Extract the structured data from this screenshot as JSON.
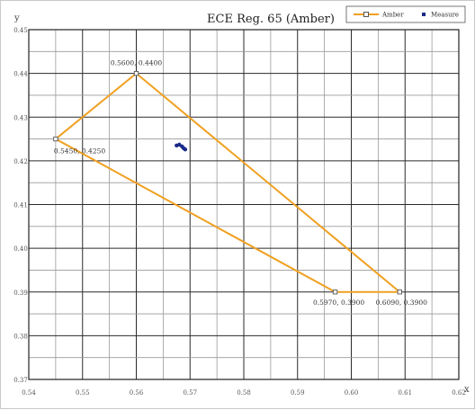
{
  "chart_data": {
    "type": "scatter",
    "title": "ECE Reg. 65 (Amber)",
    "xlabel": "x",
    "ylabel": "y",
    "xlim": [
      0.54,
      0.62
    ],
    "ylim": [
      0.37,
      0.45
    ],
    "x_ticks": [
      0.54,
      0.55,
      0.56,
      0.57,
      0.58,
      0.59,
      0.6,
      0.61,
      0.62
    ],
    "x_tick_labels": [
      "0.54",
      "0.55",
      "0.56",
      "0.57",
      "0.58",
      "0.59",
      "0.60",
      "0.61",
      "0.62"
    ],
    "y_ticks": [
      0.37,
      0.38,
      0.39,
      0.4,
      0.41,
      0.42,
      0.43,
      0.44,
      0.45
    ],
    "y_tick_labels": [
      "0.37",
      "0.38",
      "0.39",
      "0.40",
      "0.41",
      "0.42",
      "0.43",
      "0.44",
      "0.45"
    ],
    "grid": true,
    "legend_position": "top-right",
    "series": [
      {
        "name": "Amber",
        "kind": "polygon",
        "color": "#f0a020",
        "points": [
          {
            "x": 0.545,
            "y": 0.425,
            "label": "0.5450, 0.4250"
          },
          {
            "x": 0.56,
            "y": 0.44,
            "label": "0.5600, 0.4400"
          },
          {
            "x": 0.609,
            "y": 0.39,
            "label": "0.6090, 0.3900"
          },
          {
            "x": 0.597,
            "y": 0.39,
            "label": "0.5970, 0.3900"
          }
        ]
      },
      {
        "name": "Measure",
        "kind": "scatter",
        "color": "#1a2a8a",
        "points": [
          {
            "x": 0.5675,
            "y": 0.4235
          },
          {
            "x": 0.568,
            "y": 0.4237
          },
          {
            "x": 0.5685,
            "y": 0.4233
          },
          {
            "x": 0.5688,
            "y": 0.4229
          },
          {
            "x": 0.5691,
            "y": 0.4226
          }
        ]
      }
    ]
  }
}
